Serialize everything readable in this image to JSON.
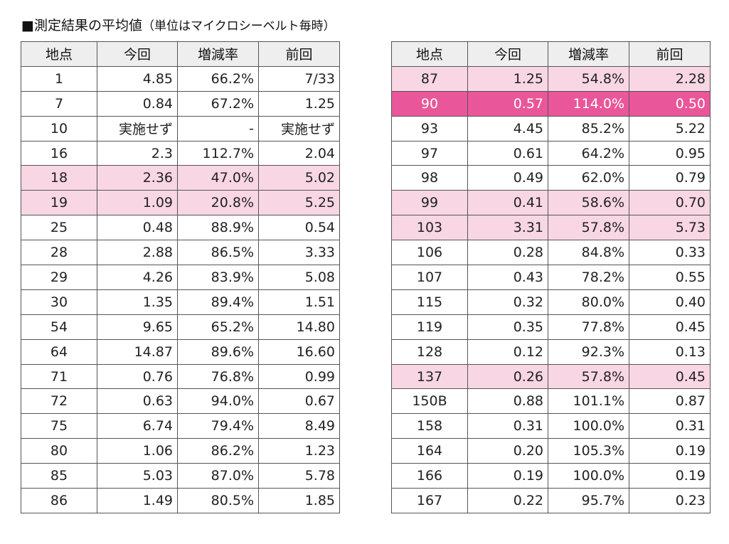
{
  "title": {
    "main": "■測定結果の平均値",
    "unit": "（単位はマイクロシーベルト毎時）"
  },
  "headers": [
    "地点",
    "今回",
    "増減率",
    "前回"
  ],
  "colors": {
    "header_bg": "#eeeeee",
    "highlight": "#f8d6e4",
    "highlight_strong": "#e9579a",
    "border": "#555555"
  },
  "left_rows": [
    {
      "site": "1",
      "current": "4.85",
      "rate": "66.2%",
      "previous": "7/33",
      "highlight": "none"
    },
    {
      "site": "7",
      "current": "0.84",
      "rate": "67.2%",
      "previous": "1.25",
      "highlight": "none"
    },
    {
      "site": "10",
      "current": "実施せず",
      "rate": "-",
      "previous": "実施せず",
      "highlight": "none"
    },
    {
      "site": "16",
      "current": "2.3",
      "rate": "112.7%",
      "previous": "2.04",
      "highlight": "none"
    },
    {
      "site": "18",
      "current": "2.36",
      "rate": "47.0%",
      "previous": "5.02",
      "highlight": "light"
    },
    {
      "site": "19",
      "current": "1.09",
      "rate": "20.8%",
      "previous": "5.25",
      "highlight": "light"
    },
    {
      "site": "25",
      "current": "0.48",
      "rate": "88.9%",
      "previous": "0.54",
      "highlight": "none"
    },
    {
      "site": "28",
      "current": "2.88",
      "rate": "86.5%",
      "previous": "3.33",
      "highlight": "none"
    },
    {
      "site": "29",
      "current": "4.26",
      "rate": "83.9%",
      "previous": "5.08",
      "highlight": "none"
    },
    {
      "site": "30",
      "current": "1.35",
      "rate": "89.4%",
      "previous": "1.51",
      "highlight": "none"
    },
    {
      "site": "54",
      "current": "9.65",
      "rate": "65.2%",
      "previous": "14.80",
      "highlight": "none"
    },
    {
      "site": "64",
      "current": "14.87",
      "rate": "89.6%",
      "previous": "16.60",
      "highlight": "none"
    },
    {
      "site": "71",
      "current": "0.76",
      "rate": "76.8%",
      "previous": "0.99",
      "highlight": "none"
    },
    {
      "site": "72",
      "current": "0.63",
      "rate": "94.0%",
      "previous": "0.67",
      "highlight": "none"
    },
    {
      "site": "75",
      "current": "6.74",
      "rate": "79.4%",
      "previous": "8.49",
      "highlight": "none"
    },
    {
      "site": "80",
      "current": "1.06",
      "rate": "86.2%",
      "previous": "1.23",
      "highlight": "none"
    },
    {
      "site": "85",
      "current": "5.03",
      "rate": "87.0%",
      "previous": "5.78",
      "highlight": "none"
    },
    {
      "site": "86",
      "current": "1.49",
      "rate": "80.5%",
      "previous": "1.85",
      "highlight": "none"
    }
  ],
  "right_rows": [
    {
      "site": "87",
      "current": "1.25",
      "rate": "54.8%",
      "previous": "2.28",
      "highlight": "light"
    },
    {
      "site": "90",
      "current": "0.57",
      "rate": "114.0%",
      "previous": "0.50",
      "highlight": "strong"
    },
    {
      "site": "93",
      "current": "4.45",
      "rate": "85.2%",
      "previous": "5.22",
      "highlight": "none"
    },
    {
      "site": "97",
      "current": "0.61",
      "rate": "64.2%",
      "previous": "0.95",
      "highlight": "none"
    },
    {
      "site": "98",
      "current": "0.49",
      "rate": "62.0%",
      "previous": "0.79",
      "highlight": "none"
    },
    {
      "site": "99",
      "current": "0.41",
      "rate": "58.6%",
      "previous": "0.70",
      "highlight": "light"
    },
    {
      "site": "103",
      "current": "3.31",
      "rate": "57.8%",
      "previous": "5.73",
      "highlight": "light"
    },
    {
      "site": "106",
      "current": "0.28",
      "rate": "84.8%",
      "previous": "0.33",
      "highlight": "none"
    },
    {
      "site": "107",
      "current": "0.43",
      "rate": "78.2%",
      "previous": "0.55",
      "highlight": "none"
    },
    {
      "site": "115",
      "current": "0.32",
      "rate": "80.0%",
      "previous": "0.40",
      "highlight": "none"
    },
    {
      "site": "119",
      "current": "0.35",
      "rate": "77.8%",
      "previous": "0.45",
      "highlight": "none"
    },
    {
      "site": "128",
      "current": "0.12",
      "rate": "92.3%",
      "previous": "0.13",
      "highlight": "none"
    },
    {
      "site": "137",
      "current": "0.26",
      "rate": "57.8%",
      "previous": "0.45",
      "highlight": "light"
    },
    {
      "site": "150B",
      "current": "0.88",
      "rate": "101.1%",
      "previous": "0.87",
      "highlight": "none"
    },
    {
      "site": "158",
      "current": "0.31",
      "rate": "100.0%",
      "previous": "0.31",
      "highlight": "none"
    },
    {
      "site": "164",
      "current": "0.20",
      "rate": "105.3%",
      "previous": "0.19",
      "highlight": "none"
    },
    {
      "site": "166",
      "current": "0.19",
      "rate": "100.0%",
      "previous": "0.19",
      "highlight": "none"
    },
    {
      "site": "167",
      "current": "0.22",
      "rate": "95.7%",
      "previous": "0.23",
      "highlight": "none"
    }
  ]
}
